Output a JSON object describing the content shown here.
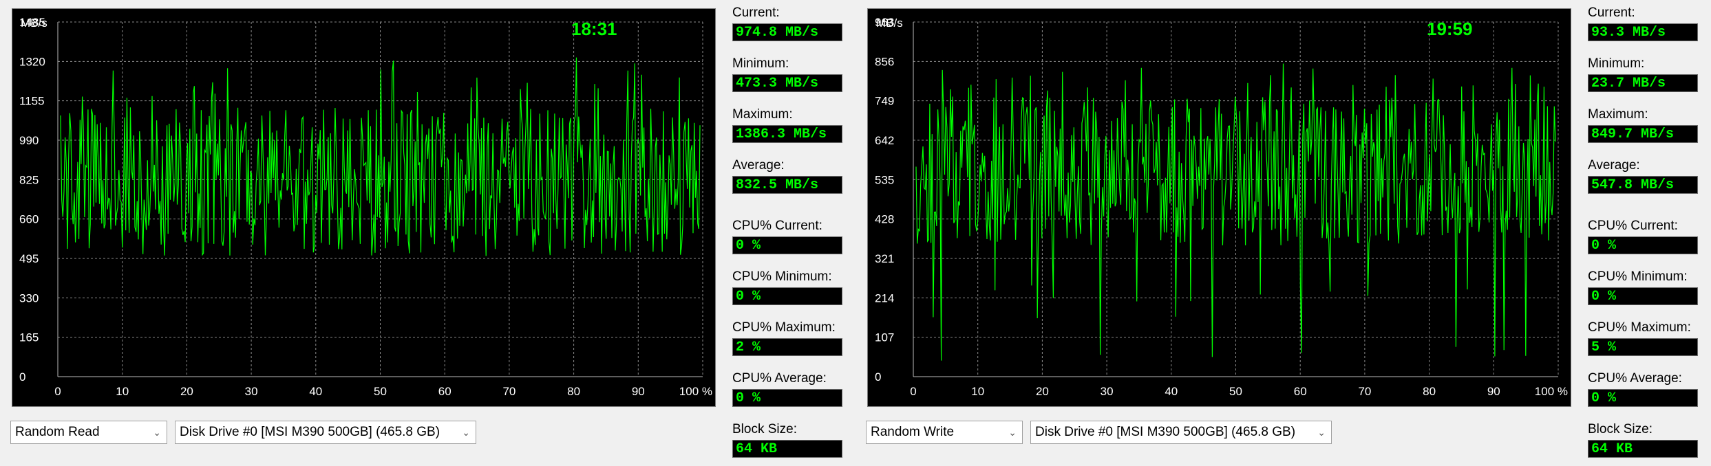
{
  "left": {
    "chart": {
      "unit": "MB/s",
      "time": "18:31",
      "yticks": [
        "0",
        "165",
        "330",
        "495",
        "660",
        "825",
        "990",
        "1155",
        "1320",
        "1485"
      ],
      "xticks": [
        "0",
        "10",
        "20",
        "30",
        "40",
        "50",
        "60",
        "70",
        "80",
        "90",
        "100 %"
      ]
    },
    "stats": [
      {
        "label": "Current:",
        "value": "974.8 MB/s"
      },
      {
        "label": "Minimum:",
        "value": "473.3 MB/s"
      },
      {
        "label": "Maximum:",
        "value": "1386.3 MB/s"
      },
      {
        "label": "Average:",
        "value": "832.5 MB/s"
      },
      {
        "label": "CPU% Current:",
        "value": "0 %"
      },
      {
        "label": "CPU% Minimum:",
        "value": "0 %"
      },
      {
        "label": "CPU% Maximum:",
        "value": "2 %"
      },
      {
        "label": "CPU% Average:",
        "value": "0 %"
      },
      {
        "label": "Block Size:",
        "value": "64 KB"
      }
    ],
    "test_select": "Random Read",
    "drive_select": "Disk Drive #0  [MSI M390 500GB]  (465.8 GB)"
  },
  "right": {
    "chart": {
      "unit": "MB/s",
      "time": "19:59",
      "yticks": [
        "0",
        "107",
        "214",
        "321",
        "428",
        "535",
        "642",
        "749",
        "856",
        "963"
      ],
      "xticks": [
        "0",
        "10",
        "20",
        "30",
        "40",
        "50",
        "60",
        "70",
        "80",
        "90",
        "100 %"
      ]
    },
    "stats": [
      {
        "label": "Current:",
        "value": "93.3 MB/s"
      },
      {
        "label": "Minimum:",
        "value": "23.7 MB/s"
      },
      {
        "label": "Maximum:",
        "value": "849.7 MB/s"
      },
      {
        "label": "Average:",
        "value": "547.8 MB/s"
      },
      {
        "label": "CPU% Current:",
        "value": "0 %"
      },
      {
        "label": "CPU% Minimum:",
        "value": "0 %"
      },
      {
        "label": "CPU% Maximum:",
        "value": "5 %"
      },
      {
        "label": "CPU% Average:",
        "value": "0 %"
      },
      {
        "label": "Block Size:",
        "value": "64 KB"
      }
    ],
    "test_select": "Random Write",
    "drive_select": "Disk Drive #0  [MSI M390 500GB]  (465.8 GB)"
  },
  "colors": {
    "trace": "#00ff00",
    "grid": "#8a8a8a",
    "chart_bg": "#000000",
    "value_text": "#00ff00"
  }
}
